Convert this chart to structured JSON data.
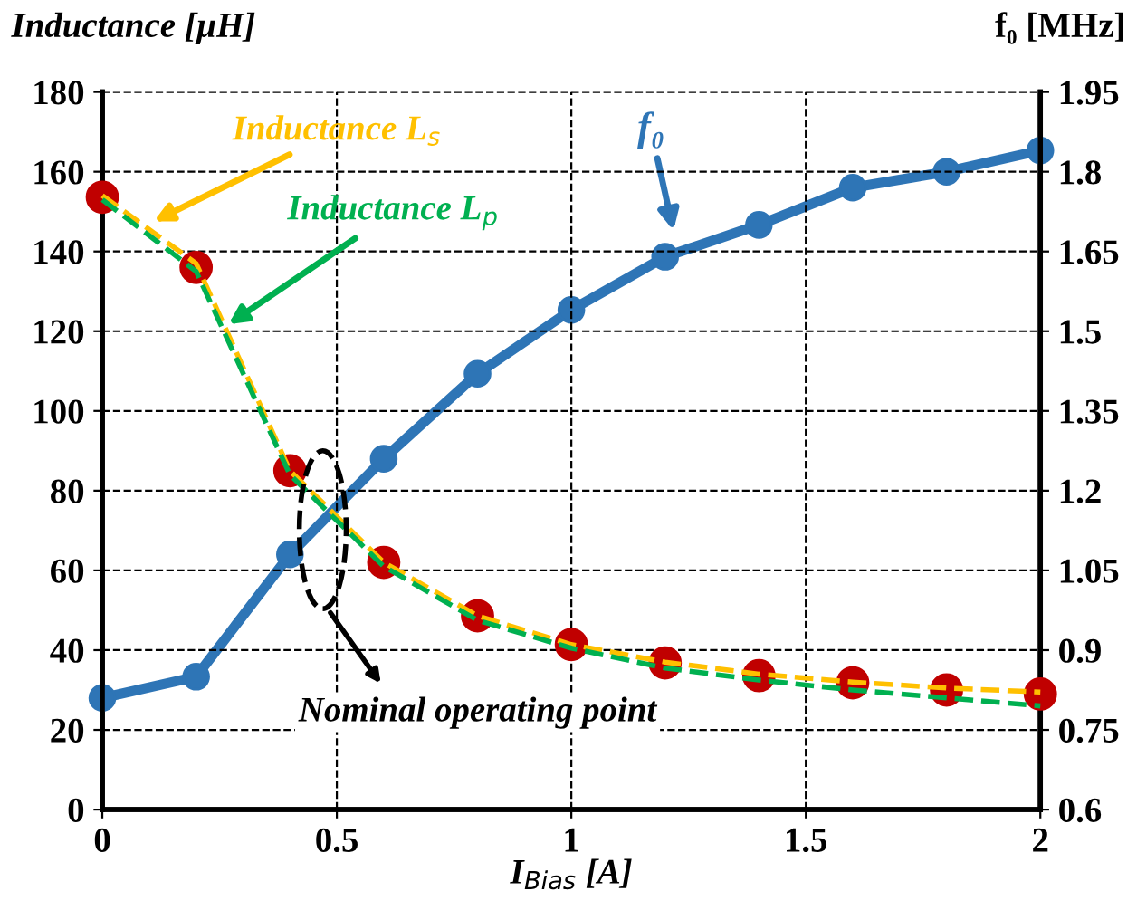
{
  "chart_data": {
    "type": "line",
    "xlabel": "I$_{Bias}$ [A]",
    "ylabel": "Inductance [µH]",
    "y2label": "f₀ [MHz]",
    "x": [
      0,
      0.2,
      0.4,
      0.6,
      0.8,
      1.0,
      1.2,
      1.4,
      1.6,
      1.8,
      2.0
    ],
    "xlim": [
      0,
      2
    ],
    "xticks": [
      0,
      0.5,
      1,
      1.5,
      2
    ],
    "ylim": [
      0,
      180
    ],
    "yticks": [
      0,
      20,
      40,
      60,
      80,
      100,
      120,
      140,
      160,
      180
    ],
    "y2lim": [
      0.6,
      1.95
    ],
    "y2ticks": [
      0.6,
      0.75,
      0.9,
      1.05,
      1.2,
      1.35,
      1.5,
      1.65,
      1.8,
      1.95
    ],
    "grid": true,
    "series": [
      {
        "name": "Inductance L$_{s}$",
        "color": "#ffc000",
        "line_style": "dashed",
        "marker": "none",
        "values": [
          154,
          137,
          85,
          62,
          48.6,
          41.4,
          37,
          34,
          32,
          30.5,
          29.5
        ]
      },
      {
        "name": "Inductance L$_{p}$",
        "color": "#00b050",
        "line_style": "dashed",
        "marker": "none",
        "values": [
          153,
          135,
          84,
          61,
          47.5,
          40.5,
          35.5,
          32.5,
          30,
          28,
          26
        ]
      },
      {
        "type": "scatter",
        "color": "#c00000",
        "marker": "circle",
        "values": [
          153.6,
          136,
          85,
          62,
          48.6,
          41.4,
          36.8,
          33.6,
          31.8,
          30,
          29
        ]
      },
      {
        "name": "f₀",
        "axis": "y2",
        "color": "#2e75b6",
        "line_style": "solid",
        "marker": "circle",
        "values": [
          0.81,
          0.85,
          1.08,
          1.26,
          1.42,
          1.54,
          1.64,
          1.7,
          1.77,
          1.8,
          1.84
        ]
      }
    ],
    "annotations": [
      "Nominal operating point"
    ]
  }
}
